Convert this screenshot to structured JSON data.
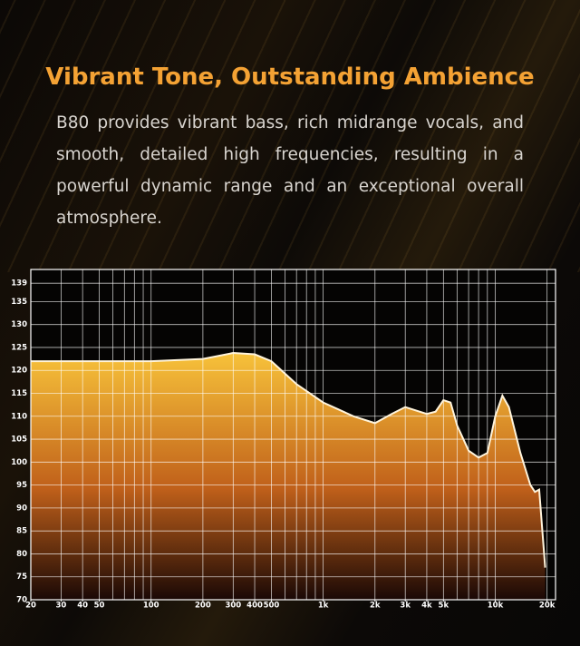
{
  "header": {
    "title": "Vibrant Tone, Outstanding Ambience",
    "text": "B80 provides vibrant bass, rich midrange vocals, and smooth, detailed high frequencies, resulting in a powerful dynamic range and an exceptional overall atmosphere."
  },
  "chart_data": {
    "type": "line",
    "log_x": true,
    "grid": true,
    "fill": true,
    "color": "#fff4dc",
    "fill_colors": [
      "#f7c23a",
      "#c0601a",
      "#1a0805"
    ],
    "x": [
      20,
      50,
      100,
      200,
      300,
      400,
      500,
      700,
      1000,
      1500,
      2000,
      2500,
      3000,
      4000,
      4500,
      5000,
      5500,
      6000,
      7000,
      8000,
      9000,
      10000,
      11000,
      12000,
      14000,
      16000,
      17000,
      18000,
      19500
    ],
    "values": [
      122,
      122,
      122,
      122.5,
      123.8,
      123.5,
      122,
      117,
      113,
      110,
      108.5,
      110.5,
      112,
      110.5,
      111,
      113.5,
      113,
      108,
      102.5,
      101,
      102,
      110,
      114.5,
      112,
      102,
      95,
      93.5,
      94,
      77
    ],
    "xlim": [
      20,
      22400
    ],
    "ylim": [
      70,
      142
    ],
    "xticks": [
      20,
      30,
      40,
      50,
      100,
      200,
      300,
      400,
      500,
      {
        "value": 1000,
        "label": "1k"
      },
      {
        "value": 2000,
        "label": "2k"
      },
      {
        "value": 3000,
        "label": "3k"
      },
      {
        "value": 4000,
        "label": "4k"
      },
      {
        "value": 5000,
        "label": "5k"
      },
      {
        "value": 10000,
        "label": "10k"
      },
      {
        "value": 20000,
        "label": "20k"
      }
    ],
    "xgrid": [
      20,
      30,
      40,
      50,
      60,
      70,
      80,
      90,
      100,
      200,
      300,
      400,
      500,
      600,
      700,
      800,
      900,
      1000,
      2000,
      3000,
      4000,
      5000,
      6000,
      7000,
      8000,
      9000,
      10000,
      20000
    ],
    "yticks": [
      70,
      75,
      80,
      85,
      90,
      95,
      100,
      105,
      110,
      115,
      120,
      125,
      130,
      135,
      139
    ]
  }
}
